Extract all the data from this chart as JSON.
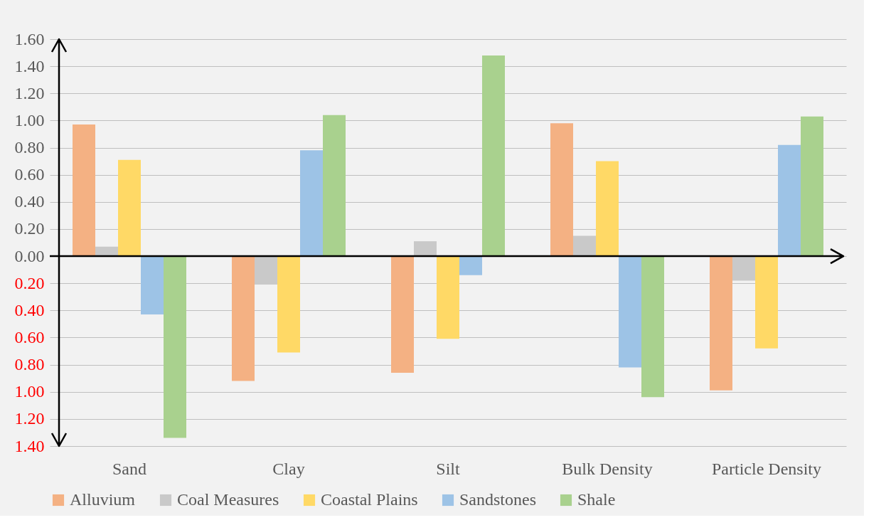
{
  "chart_data": {
    "type": "bar",
    "categories": [
      "Sand",
      "Clay",
      "Silt",
      "Bulk Density",
      "Particle Density"
    ],
    "series": [
      {
        "name": "Alluvium",
        "color": "#f4b183",
        "values": [
          0.97,
          -0.92,
          -0.86,
          0.98,
          -0.99
        ]
      },
      {
        "name": "Coal Measures",
        "color": "#c9c9c9",
        "values": [
          0.07,
          -0.21,
          0.11,
          0.15,
          -0.18
        ]
      },
      {
        "name": "Coastal Plains",
        "color": "#ffd966",
        "values": [
          0.71,
          -0.71,
          -0.61,
          0.7,
          -0.68
        ]
      },
      {
        "name": "Sandstones",
        "color": "#9dc3e6",
        "values": [
          -0.43,
          0.78,
          -0.14,
          -0.82,
          0.82
        ]
      },
      {
        "name": "Shale",
        "color": "#a9d18e",
        "values": [
          -1.34,
          1.04,
          1.48,
          -1.04,
          1.03
        ]
      }
    ],
    "ylim": [
      -1.4,
      1.6
    ],
    "yticks": [
      {
        "value": -1.4,
        "label": "1.40"
      },
      {
        "value": -1.2,
        "label": "1.20"
      },
      {
        "value": -1.0,
        "label": "1.00"
      },
      {
        "value": -0.8,
        "label": "0.80"
      },
      {
        "value": -0.6,
        "label": "0.60"
      },
      {
        "value": -0.4,
        "label": "0.40"
      },
      {
        "value": -0.2,
        "label": "0.20"
      },
      {
        "value": 0,
        "label": "0.00"
      },
      {
        "value": 0.2,
        "label": "0.20"
      },
      {
        "value": 0.4,
        "label": "0.40"
      },
      {
        "value": 0.6,
        "label": "0.60"
      },
      {
        "value": 0.8,
        "label": "0.80"
      },
      {
        "value": 1.0,
        "label": "1.00"
      },
      {
        "value": 1.2,
        "label": "1.20"
      },
      {
        "value": 1.4,
        "label": "1.40"
      },
      {
        "value": 1.6,
        "label": "1.60"
      }
    ],
    "grid": true,
    "legend": "bottom"
  }
}
